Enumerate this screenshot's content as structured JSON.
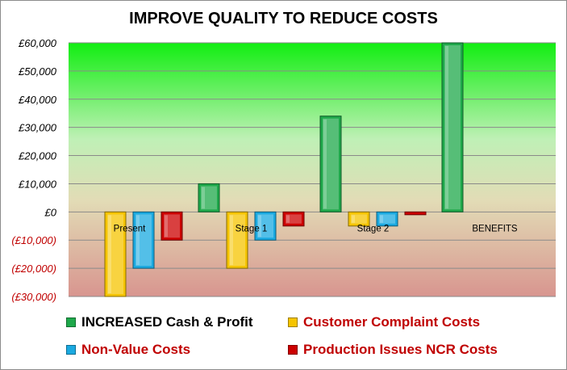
{
  "chart_data": {
    "type": "bar",
    "title": "IMPROVE QUALITY TO REDUCE COSTS",
    "xlabel": "",
    "ylabel": "",
    "categories": [
      "Present",
      "Stage 1",
      "Stage 2",
      "BENEFITS"
    ],
    "ylim": [
      -30000,
      60000
    ],
    "yticks": [
      60000,
      50000,
      40000,
      30000,
      20000,
      10000,
      0,
      -10000,
      -20000,
      -30000
    ],
    "ytick_labels": [
      "£60,000",
      "£50,000",
      "£40,000",
      "£30,000",
      "£20,000",
      "£10,000",
      "£0",
      "(£10,000)",
      "(£20,000)",
      "(£30,000)"
    ],
    "grid": true,
    "legend_position": "bottom",
    "series": [
      {
        "name": "INCREASED Cash & Profit",
        "values": [
          0,
          10000,
          34000,
          60000
        ],
        "color": "#1ea84a",
        "label_color": "#000000"
      },
      {
        "name": "Customer Complaint Costs",
        "values": [
          -30000,
          -20000,
          -5000,
          0
        ],
        "color": "#f5c400",
        "label_color": "#c00000"
      },
      {
        "name": "Non-Value Costs",
        "values": [
          -20000,
          -10000,
          -5000,
          0
        ],
        "color": "#1aa9e0",
        "label_color": "#c00000"
      },
      {
        "name": "Production Issues NCR Costs",
        "values": [
          -10000,
          -5000,
          -1000,
          0
        ],
        "color": "#cc0000",
        "label_color": "#c00000"
      }
    ]
  }
}
